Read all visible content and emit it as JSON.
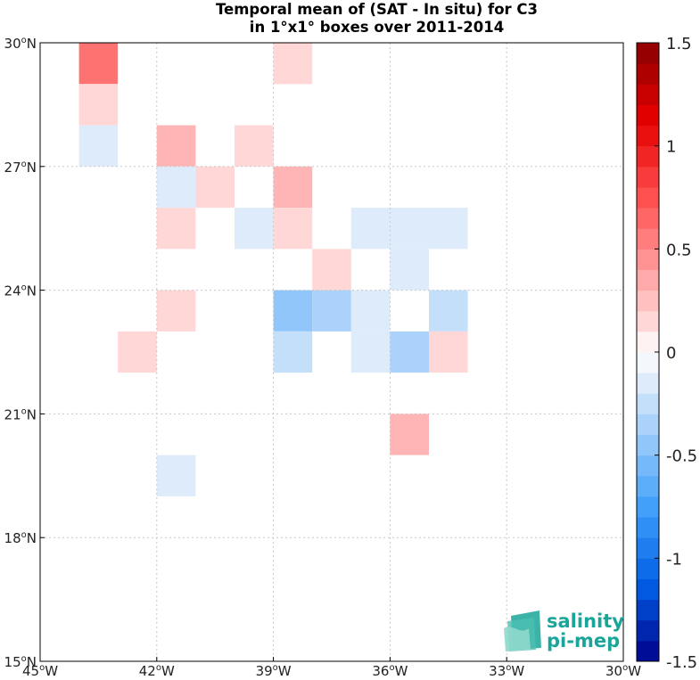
{
  "title_line1": "Temporal mean of (SAT - In situ) for C3",
  "title_line2": "in 1°x1° boxes over 2011-2014",
  "logo": {
    "line1": "salinity",
    "line2": "pi-mep",
    "color": "#1aa59a"
  },
  "chart_data": {
    "type": "heatmap",
    "x_axis": {
      "range": [
        -45,
        -30
      ],
      "ticks": [
        -45,
        -42,
        -39,
        -36,
        -33,
        -30
      ],
      "tick_labels": [
        "45°W",
        "42°W",
        "39°W",
        "36°W",
        "33°W",
        "30°W"
      ]
    },
    "y_axis": {
      "range": [
        15,
        30
      ],
      "ticks": [
        15,
        18,
        21,
        24,
        27,
        30
      ],
      "tick_labels": [
        "15°N",
        "18°N",
        "21°N",
        "24°N",
        "27°N",
        "30°N"
      ]
    },
    "grid": true,
    "colorbar": {
      "range": [
        -1.5,
        1.5
      ],
      "ticks": [
        -1.5,
        -1,
        -0.5,
        0,
        0.5,
        1,
        1.5
      ],
      "tick_labels": [
        "-1.5",
        "-1",
        "-0.5",
        "0",
        "0.5",
        "1",
        "1.5"
      ],
      "colormap": "diverging blue-white-red",
      "levels": 30
    },
    "cells": [
      {
        "lon": -44,
        "lat": 29,
        "value": 0.6
      },
      {
        "lon": -44,
        "lat": 28,
        "value": 0.15
      },
      {
        "lon": -44,
        "lat": 27,
        "value": -0.15
      },
      {
        "lon": -39,
        "lat": 29,
        "value": 0.15
      },
      {
        "lon": -42,
        "lat": 27,
        "value": 0.3
      },
      {
        "lon": -40,
        "lat": 27,
        "value": 0.15
      },
      {
        "lon": -42,
        "lat": 26,
        "value": -0.15
      },
      {
        "lon": -41,
        "lat": 26,
        "value": 0.15
      },
      {
        "lon": -39,
        "lat": 26,
        "value": 0.3
      },
      {
        "lon": -42,
        "lat": 25,
        "value": 0.15
      },
      {
        "lon": -40,
        "lat": 25,
        "value": -0.15
      },
      {
        "lon": -39,
        "lat": 25,
        "value": 0.15
      },
      {
        "lon": -37,
        "lat": 25,
        "value": -0.15
      },
      {
        "lon": -36,
        "lat": 25,
        "value": -0.15
      },
      {
        "lon": -35,
        "lat": 25,
        "value": -0.15
      },
      {
        "lon": -38,
        "lat": 24,
        "value": 0.15
      },
      {
        "lon": -36,
        "lat": 24,
        "value": -0.15
      },
      {
        "lon": -42,
        "lat": 23,
        "value": 0.15
      },
      {
        "lon": -39,
        "lat": 23,
        "value": -0.45
      },
      {
        "lon": -38,
        "lat": 23,
        "value": -0.35
      },
      {
        "lon": -37,
        "lat": 23,
        "value": -0.15
      },
      {
        "lon": -35,
        "lat": 23,
        "value": -0.25
      },
      {
        "lon": -43,
        "lat": 22,
        "value": 0.15
      },
      {
        "lon": -39,
        "lat": 22,
        "value": -0.25
      },
      {
        "lon": -37,
        "lat": 22,
        "value": -0.15
      },
      {
        "lon": -36,
        "lat": 22,
        "value": -0.35
      },
      {
        "lon": -35,
        "lat": 22,
        "value": 0.15
      },
      {
        "lon": -36,
        "lat": 20,
        "value": 0.3
      },
      {
        "lon": -42,
        "lat": 19,
        "value": -0.15
      }
    ]
  }
}
